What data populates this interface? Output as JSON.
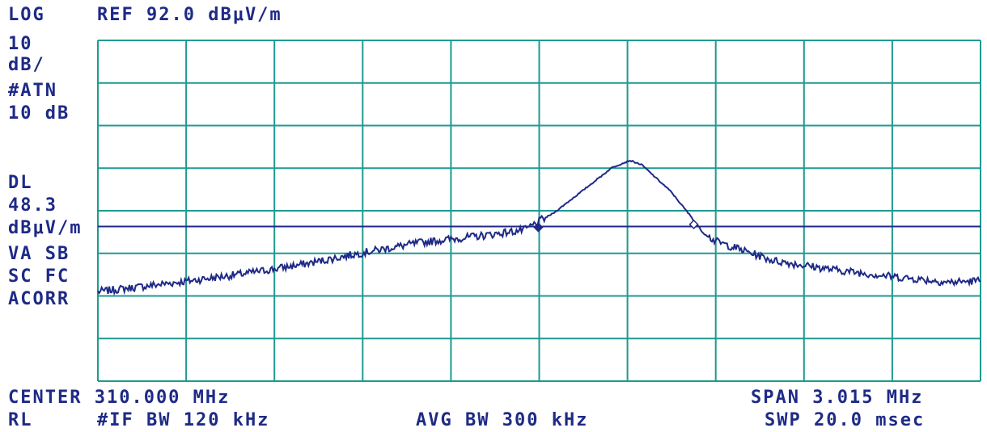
{
  "header": {
    "scale_mode": "LOG",
    "reference": "REF 92.0 dBμV/m",
    "scale_div": [
      "10",
      "dB/"
    ],
    "attenuation": [
      "#ATN",
      "10 dB"
    ],
    "display_line": [
      "DL",
      "48.3",
      "dBμV/m"
    ],
    "flags": [
      "VA SB",
      "SC FC",
      "ACORR"
    ]
  },
  "footer": {
    "center": "CENTER 310.000 MHz",
    "span": "SPAN 3.015 MHz",
    "rl": "RL",
    "if_bw": "#IF BW 120 kHz",
    "avg_bw": "AVG BW 300 kHz",
    "sweep": "SWP 20.0 msec"
  },
  "colors": {
    "grid": "#1e9a92",
    "trace": "#1e2a86",
    "background": "#ffffff"
  },
  "chart_data": {
    "type": "line",
    "x_unit": "MHz",
    "y_unit": "dBμV/m",
    "xlim": [
      308.4925,
      311.5075
    ],
    "ylim": [
      12,
      92
    ],
    "y_scale": "log-display 10 dB/div",
    "grid": true,
    "display_line": 48.3,
    "markers": [
      {
        "x": 309.997,
        "y": 48.1,
        "symbol": "filled-diamond"
      },
      {
        "x": 310.528,
        "y": 48.8,
        "symbol": "open-diamond"
      }
    ],
    "series": [
      {
        "x": [
          308.4925,
          308.8,
          309.0,
          309.2,
          309.4,
          309.6,
          309.8,
          309.95,
          310.05,
          310.15,
          310.25,
          310.31,
          310.35,
          310.45,
          310.52,
          310.56,
          310.6,
          310.8,
          311.0,
          311.2,
          311.4,
          311.5075
        ],
        "y": [
          33,
          35.5,
          37.3,
          39.5,
          42.2,
          44.6,
          46.1,
          47.5,
          51.5,
          56.8,
          62.2,
          63.8,
          62.8,
          56.5,
          50.5,
          46.8,
          44.9,
          40.3,
          38.2,
          36.6,
          35.2,
          35.6
        ]
      }
    ]
  }
}
